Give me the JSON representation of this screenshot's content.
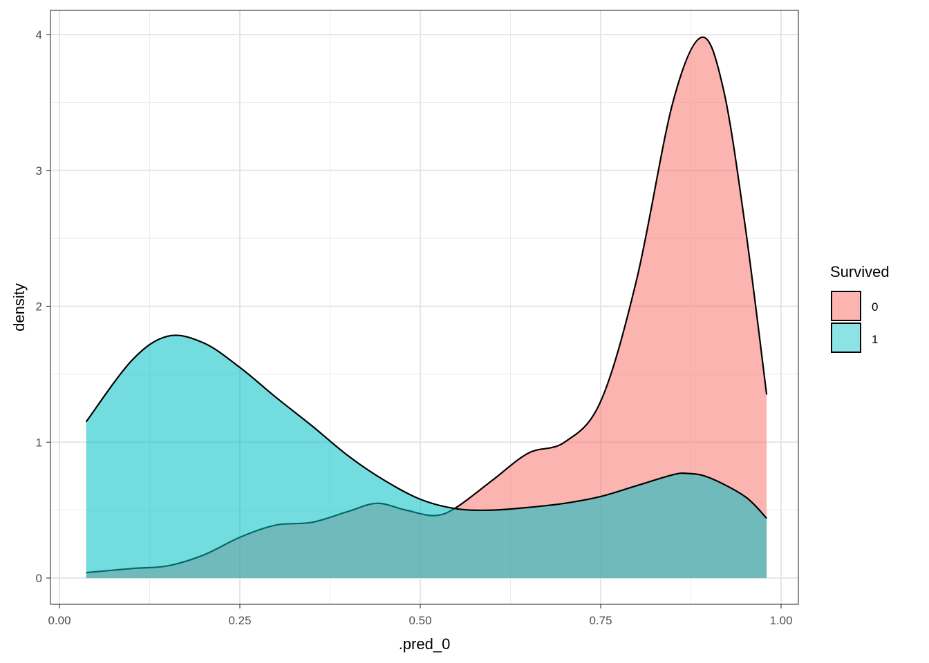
{
  "chart_data": {
    "type": "area",
    "subtype": "density",
    "xlabel": ".pred_0",
    "ylabel": "density",
    "xlim": [
      -0.01,
      1.025
    ],
    "ylim": [
      -0.2,
      4.18
    ],
    "xticks": [
      0,
      0.25,
      0.5,
      0.75,
      1
    ],
    "xtick_labels": [
      "0.00",
      "0.25",
      "0.50",
      "0.75",
      "1.00"
    ],
    "yticks": [
      0,
      1,
      2,
      3,
      4
    ],
    "ytick_labels": [
      "0",
      "1",
      "2",
      "3",
      "4"
    ],
    "grid": true,
    "legend": {
      "title": "Survived",
      "position": "right",
      "entries": [
        "0",
        "1"
      ]
    },
    "series": [
      {
        "name": "0",
        "color": "#F8766D",
        "x": [
          0.037,
          0.1,
          0.15,
          0.2,
          0.25,
          0.3,
          0.35,
          0.4,
          0.44,
          0.48,
          0.52,
          0.55,
          0.6,
          0.65,
          0.7,
          0.75,
          0.8,
          0.85,
          0.89,
          0.92,
          0.95,
          0.98
        ],
        "y": [
          0.04,
          0.07,
          0.09,
          0.17,
          0.3,
          0.39,
          0.41,
          0.49,
          0.55,
          0.5,
          0.46,
          0.52,
          0.72,
          0.92,
          1.0,
          1.3,
          2.2,
          3.5,
          3.98,
          3.6,
          2.6,
          1.35
        ]
      },
      {
        "name": "1",
        "color": "#00BFC4",
        "x": [
          0.037,
          0.1,
          0.15,
          0.2,
          0.25,
          0.3,
          0.35,
          0.4,
          0.45,
          0.5,
          0.55,
          0.6,
          0.65,
          0.7,
          0.75,
          0.8,
          0.85,
          0.87,
          0.9,
          0.95,
          0.98
        ],
        "y": [
          1.15,
          1.6,
          1.78,
          1.73,
          1.55,
          1.33,
          1.12,
          0.9,
          0.72,
          0.58,
          0.51,
          0.5,
          0.52,
          0.55,
          0.6,
          0.68,
          0.76,
          0.77,
          0.74,
          0.6,
          0.44
        ]
      }
    ]
  }
}
